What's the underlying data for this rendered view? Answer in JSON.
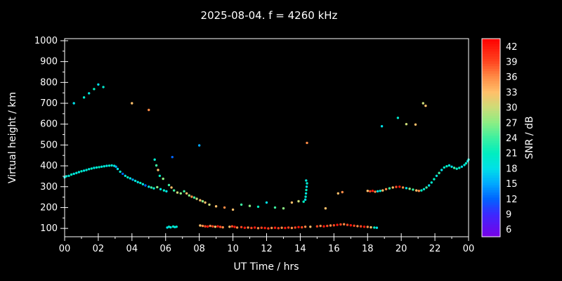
{
  "colors": {
    "background": "#000000",
    "plot_background": "#000000",
    "axis": "#ffffff",
    "text": "#ffffff"
  },
  "chart_data": {
    "type": "scatter",
    "title": "2025-08-04. f = 4260 kHz",
    "xlabel": "UT Time / hrs",
    "ylabel": "Virtual height / km",
    "colorbar_label": "SNR / dB",
    "xlim": [
      0,
      24
    ],
    "ylim": [
      60,
      1010
    ],
    "x_tick_values": [
      0,
      2,
      4,
      6,
      8,
      10,
      12,
      14,
      16,
      18,
      20,
      22,
      24
    ],
    "x_tick_labels": [
      "00",
      "02",
      "04",
      "06",
      "08",
      "10",
      "12",
      "14",
      "16",
      "18",
      "20",
      "22",
      "00"
    ],
    "y_ticks": [
      100,
      200,
      300,
      400,
      500,
      600,
      700,
      800,
      900,
      1000
    ],
    "colorbar_ticks": [
      6,
      9,
      12,
      15,
      18,
      21,
      24,
      27,
      30,
      33,
      36,
      39,
      42
    ],
    "colorbar_range": [
      4.5,
      43.5
    ],
    "colormap_stops": [
      [
        4.5,
        "#7a00e6"
      ],
      [
        9,
        "#3c28ff"
      ],
      [
        12,
        "#0064ff"
      ],
      [
        15,
        "#00a8ff"
      ],
      [
        18,
        "#00e0e8"
      ],
      [
        21,
        "#00eec0"
      ],
      [
        24,
        "#3cf0a0"
      ],
      [
        27,
        "#8cee84"
      ],
      [
        30,
        "#ccdc78"
      ],
      [
        33,
        "#ffc06a"
      ],
      [
        36,
        "#ff8c46"
      ],
      [
        39,
        "#ff4620"
      ],
      [
        43.5,
        "#ff0000"
      ]
    ],
    "points": [
      [
        0.0,
        345,
        18
      ],
      [
        0.1,
        350,
        20
      ],
      [
        0.25,
        352,
        19
      ],
      [
        0.4,
        358,
        21
      ],
      [
        0.55,
        362,
        18
      ],
      [
        0.7,
        366,
        20
      ],
      [
        0.85,
        370,
        19
      ],
      [
        1.0,
        374,
        21
      ],
      [
        1.15,
        377,
        18
      ],
      [
        1.3,
        380,
        20
      ],
      [
        1.45,
        384,
        19
      ],
      [
        1.6,
        387,
        21
      ],
      [
        1.75,
        390,
        18
      ],
      [
        1.9,
        392,
        20
      ],
      [
        2.05,
        394,
        21
      ],
      [
        2.2,
        396,
        19
      ],
      [
        2.35,
        398,
        20
      ],
      [
        2.5,
        400,
        18
      ],
      [
        2.65,
        401,
        21
      ],
      [
        2.8,
        402,
        19
      ],
      [
        2.95,
        400,
        20
      ],
      [
        3.05,
        396,
        15
      ],
      [
        3.15,
        385,
        18
      ],
      [
        3.3,
        372,
        20
      ],
      [
        3.45,
        362,
        12
      ],
      [
        3.6,
        352,
        19
      ],
      [
        3.75,
        345,
        21
      ],
      [
        3.9,
        340,
        18
      ],
      [
        4.05,
        334,
        15
      ],
      [
        4.2,
        328,
        20
      ],
      [
        4.35,
        322,
        18
      ],
      [
        4.5,
        318,
        21
      ],
      [
        4.65,
        312,
        19
      ],
      [
        4.8,
        306,
        12
      ],
      [
        5.0,
        300,
        18
      ],
      [
        5.15,
        296,
        24
      ],
      [
        5.3,
        292,
        20
      ],
      [
        5.5,
        298,
        27
      ],
      [
        5.7,
        288,
        19
      ],
      [
        5.9,
        282,
        21
      ],
      [
        6.05,
        278,
        18
      ],
      [
        0.55,
        700,
        18
      ],
      [
        1.15,
        728,
        20
      ],
      [
        1.45,
        748,
        19
      ],
      [
        1.75,
        768,
        21
      ],
      [
        2.0,
        790,
        18
      ],
      [
        2.3,
        778,
        20
      ],
      [
        4.0,
        700,
        33
      ],
      [
        5.0,
        668,
        36
      ],
      [
        6.4,
        442,
        12
      ],
      [
        8.0,
        498,
        15
      ],
      [
        5.35,
        430,
        20
      ],
      [
        5.45,
        402,
        24
      ],
      [
        5.55,
        380,
        33
      ],
      [
        5.65,
        352,
        21
      ],
      [
        5.85,
        338,
        27
      ],
      [
        6.2,
        308,
        24
      ],
      [
        6.35,
        296,
        33
      ],
      [
        6.5,
        282,
        24
      ],
      [
        6.7,
        272,
        30
      ],
      [
        6.9,
        268,
        27
      ],
      [
        7.1,
        278,
        24
      ],
      [
        7.25,
        268,
        33
      ],
      [
        7.4,
        258,
        27
      ],
      [
        7.55,
        252,
        36
      ],
      [
        7.7,
        248,
        24
      ],
      [
        7.85,
        242,
        30
      ],
      [
        8.05,
        235,
        33
      ],
      [
        8.2,
        230,
        27
      ],
      [
        6.1,
        104,
        18
      ],
      [
        6.2,
        108,
        20
      ],
      [
        6.3,
        105,
        19
      ],
      [
        6.45,
        109,
        21
      ],
      [
        6.55,
        106,
        18
      ],
      [
        6.65,
        108,
        20
      ],
      [
        8.05,
        114,
        33
      ],
      [
        8.2,
        112,
        36
      ],
      [
        8.35,
        110,
        39
      ],
      [
        8.5,
        109,
        42
      ],
      [
        8.65,
        112,
        36
      ],
      [
        8.8,
        110,
        39
      ],
      [
        8.95,
        108,
        33
      ],
      [
        9.1,
        110,
        42
      ],
      [
        9.25,
        107,
        39
      ],
      [
        9.4,
        105,
        36
      ],
      [
        9.8,
        108,
        33
      ],
      [
        9.95,
        110,
        39
      ],
      [
        10.1,
        107,
        42
      ],
      [
        10.25,
        104,
        36
      ],
      [
        10.5,
        106,
        39
      ],
      [
        10.7,
        103,
        42
      ],
      [
        10.9,
        104,
        36
      ],
      [
        11.1,
        102,
        39
      ],
      [
        11.3,
        104,
        42
      ],
      [
        11.5,
        101,
        36
      ],
      [
        11.7,
        103,
        39
      ],
      [
        11.9,
        102,
        42
      ],
      [
        12.1,
        100,
        39
      ],
      [
        12.3,
        102,
        36
      ],
      [
        12.5,
        103,
        42
      ],
      [
        12.7,
        101,
        39
      ],
      [
        12.9,
        103,
        36
      ],
      [
        13.1,
        102,
        42
      ],
      [
        13.3,
        104,
        39
      ],
      [
        13.5,
        102,
        36
      ],
      [
        13.7,
        104,
        39
      ],
      [
        13.9,
        106,
        42
      ],
      [
        14.1,
        105,
        39
      ],
      [
        14.3,
        108,
        36
      ],
      [
        14.6,
        108,
        33
      ],
      [
        15.0,
        110,
        39
      ],
      [
        15.2,
        112,
        36
      ],
      [
        15.4,
        110,
        42
      ],
      [
        15.6,
        112,
        39
      ],
      [
        15.8,
        114,
        36
      ],
      [
        16.0,
        115,
        39
      ],
      [
        16.2,
        117,
        42
      ],
      [
        16.4,
        119,
        39
      ],
      [
        16.6,
        120,
        36
      ],
      [
        16.8,
        117,
        39
      ],
      [
        17.0,
        115,
        42
      ],
      [
        17.2,
        113,
        39
      ],
      [
        17.4,
        111,
        36
      ],
      [
        17.6,
        110,
        39
      ],
      [
        17.8,
        108,
        42
      ],
      [
        18.0,
        107,
        36
      ],
      [
        18.2,
        105,
        33
      ],
      [
        18.4,
        104,
        21
      ],
      [
        18.55,
        103,
        18
      ],
      [
        8.35,
        224,
        33
      ],
      [
        8.6,
        214,
        30
      ],
      [
        9.0,
        206,
        33
      ],
      [
        9.5,
        200,
        36
      ],
      [
        10.0,
        190,
        33
      ],
      [
        10.5,
        214,
        24
      ],
      [
        11.0,
        208,
        27
      ],
      [
        11.5,
        204,
        21
      ],
      [
        12.0,
        224,
        18
      ],
      [
        12.5,
        200,
        24
      ],
      [
        13.0,
        196,
        27
      ],
      [
        13.5,
        224,
        33
      ],
      [
        13.9,
        230,
        30
      ],
      [
        14.2,
        228,
        21
      ],
      [
        14.3,
        238,
        18
      ],
      [
        14.32,
        252,
        20
      ],
      [
        14.34,
        268,
        19
      ],
      [
        14.36,
        284,
        21
      ],
      [
        14.38,
        300,
        18
      ],
      [
        14.4,
        316,
        20
      ],
      [
        14.35,
        330,
        19
      ],
      [
        14.4,
        510,
        36
      ],
      [
        15.5,
        196,
        33
      ],
      [
        16.25,
        268,
        33
      ],
      [
        16.5,
        274,
        36
      ],
      [
        18.0,
        280,
        33
      ],
      [
        18.15,
        278,
        39
      ],
      [
        18.3,
        280,
        42
      ],
      [
        18.45,
        276,
        36
      ],
      [
        18.6,
        278,
        18
      ],
      [
        18.75,
        280,
        20
      ],
      [
        18.9,
        282,
        33
      ],
      [
        19.1,
        288,
        36
      ],
      [
        19.3,
        292,
        24
      ],
      [
        19.5,
        296,
        33
      ],
      [
        19.7,
        299,
        39
      ],
      [
        19.9,
        300,
        42
      ],
      [
        20.1,
        296,
        36
      ],
      [
        20.3,
        293,
        18
      ],
      [
        20.5,
        290,
        27
      ],
      [
        20.7,
        286,
        24
      ],
      [
        20.9,
        282,
        33
      ],
      [
        21.05,
        280,
        36
      ],
      [
        18.85,
        590,
        18
      ],
      [
        19.8,
        630,
        20
      ],
      [
        20.3,
        600,
        30
      ],
      [
        20.85,
        598,
        33
      ],
      [
        21.3,
        700,
        30
      ],
      [
        21.45,
        688,
        33
      ],
      [
        21.2,
        282,
        21
      ],
      [
        21.35,
        288,
        19
      ],
      [
        21.5,
        296,
        24
      ],
      [
        21.65,
        306,
        18
      ],
      [
        21.8,
        320,
        20
      ],
      [
        21.95,
        336,
        21
      ],
      [
        22.1,
        352,
        19
      ],
      [
        22.25,
        366,
        24
      ],
      [
        22.4,
        380,
        18
      ],
      [
        22.55,
        392,
        20
      ],
      [
        22.7,
        398,
        21
      ],
      [
        22.85,
        402,
        19
      ],
      [
        23.0,
        396,
        18
      ],
      [
        23.15,
        390,
        24
      ],
      [
        23.3,
        386,
        20
      ],
      [
        23.45,
        390,
        21
      ],
      [
        23.6,
        396,
        18
      ],
      [
        23.75,
        404,
        19
      ],
      [
        23.85,
        412,
        21
      ],
      [
        23.95,
        422,
        18
      ],
      [
        24.0,
        430,
        20
      ]
    ]
  }
}
